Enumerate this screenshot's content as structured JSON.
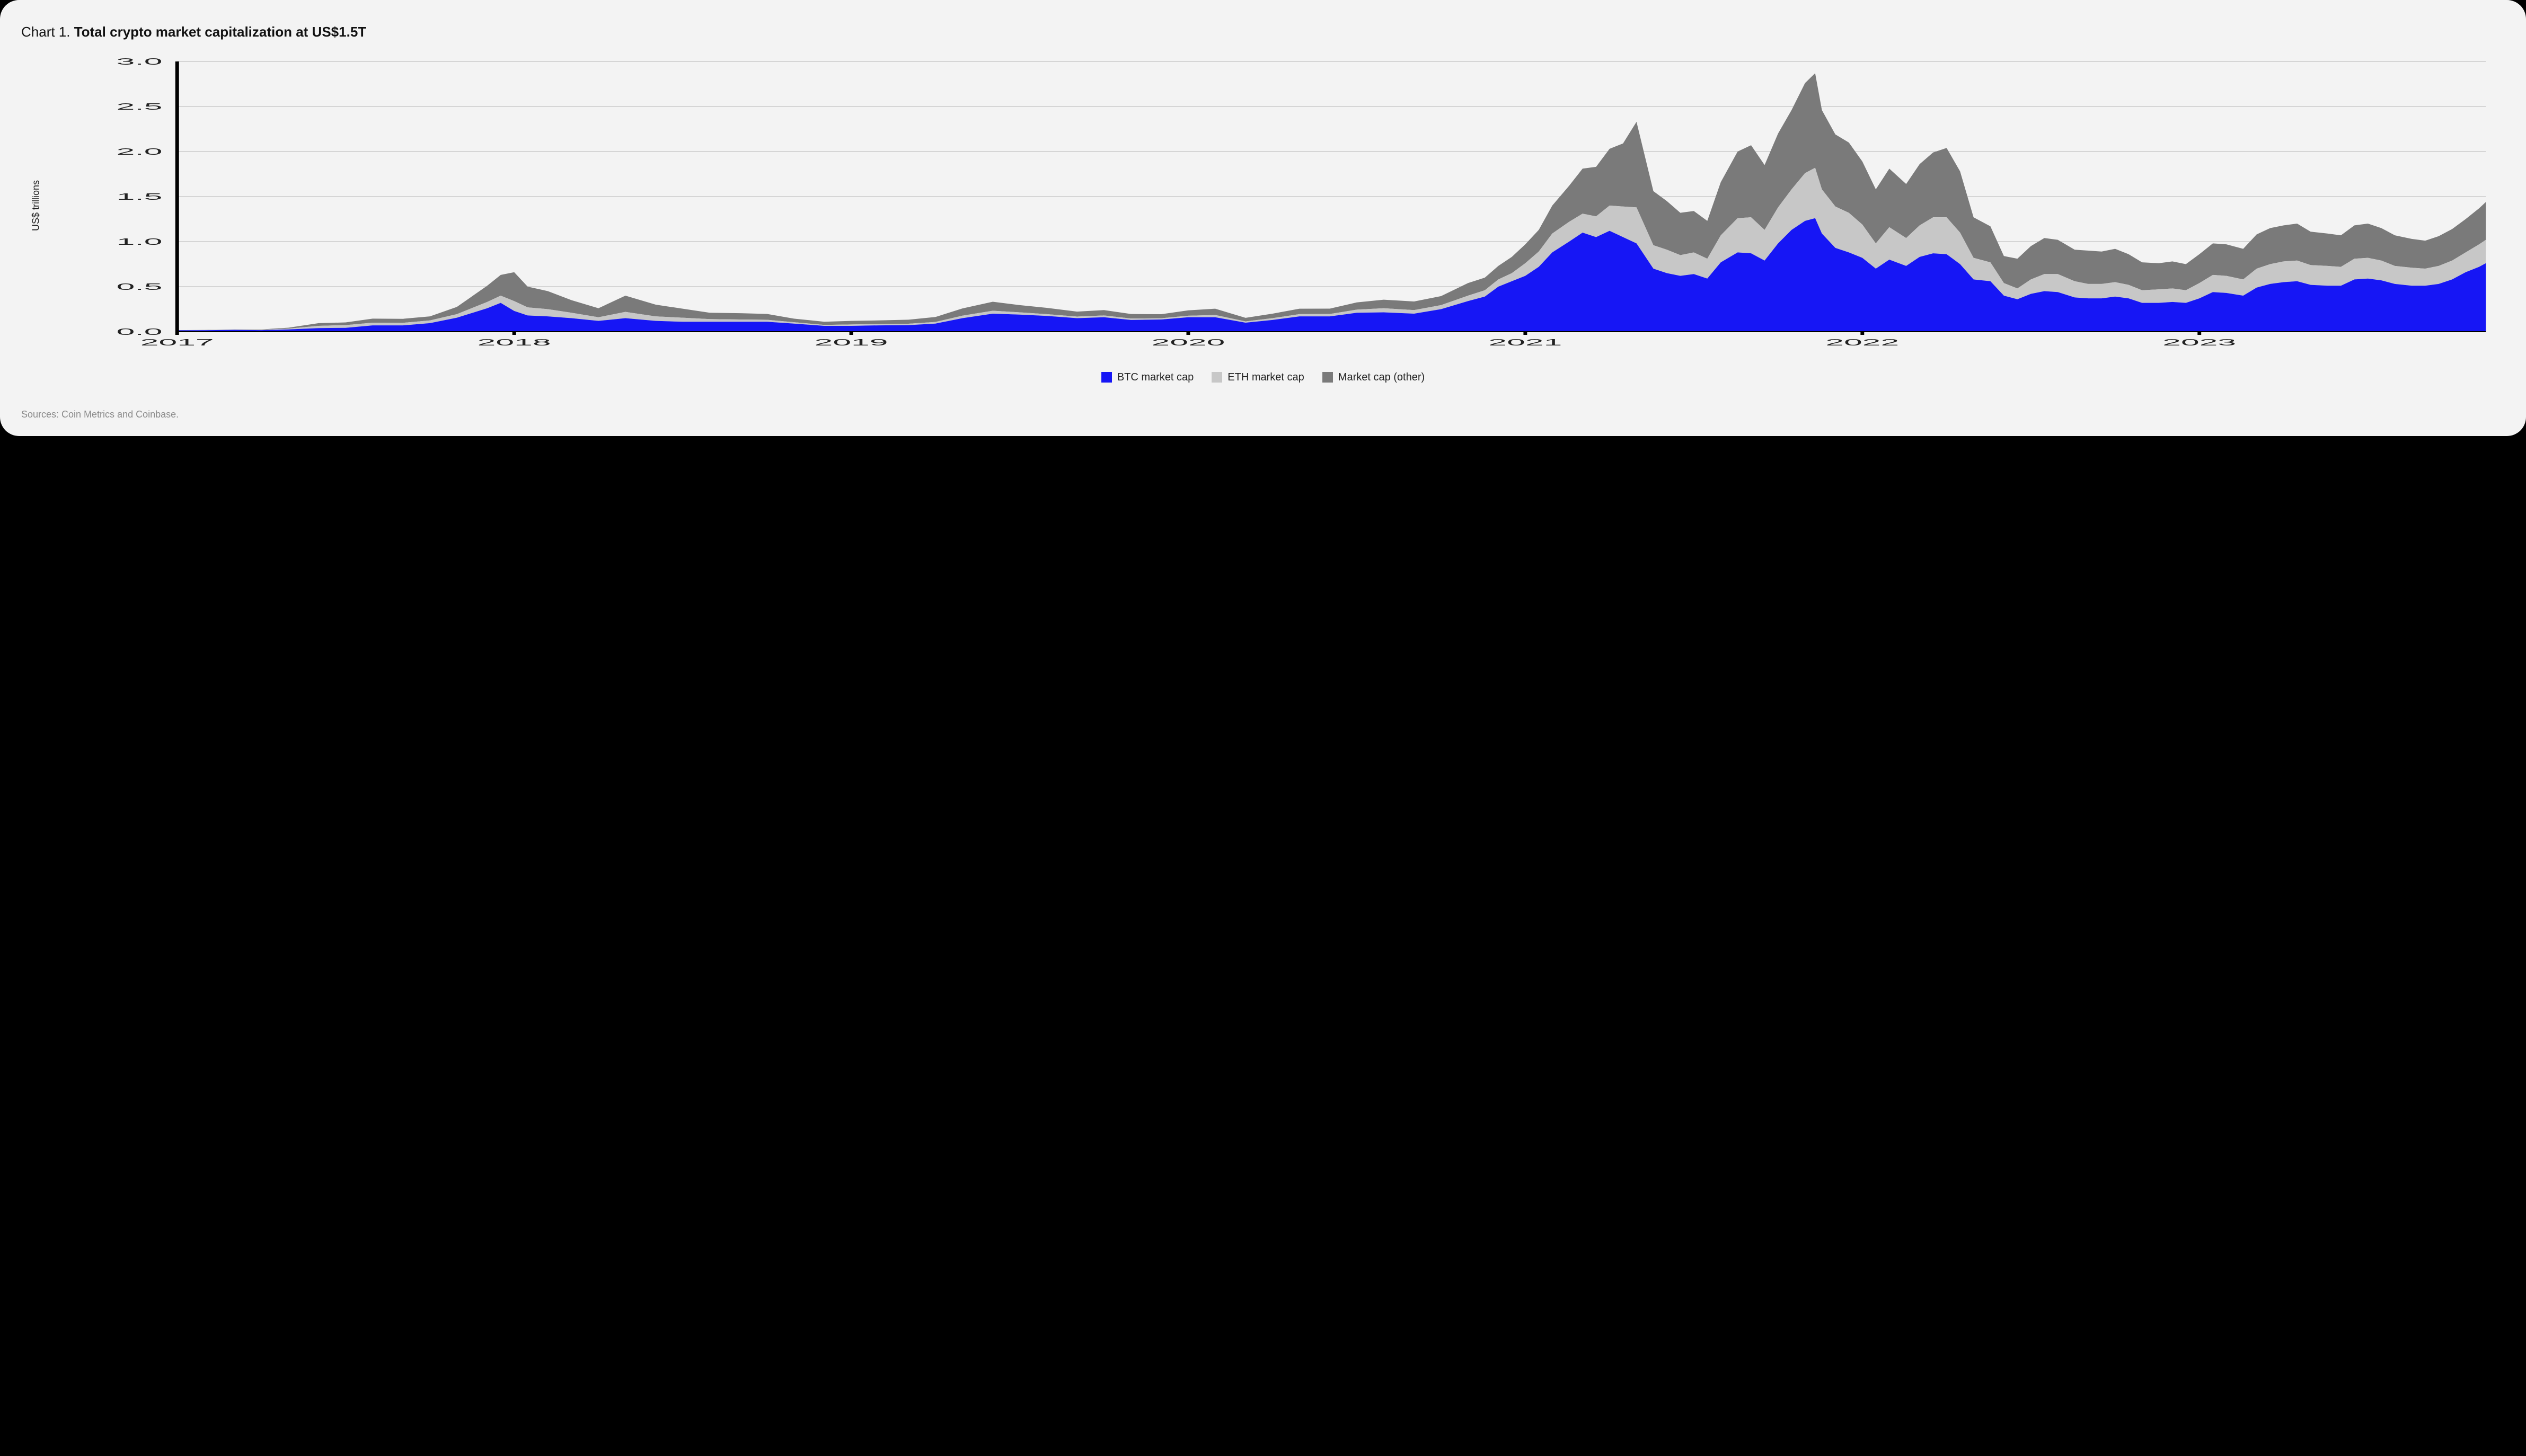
{
  "title_prefix": "Chart 1. ",
  "title_bold": "Total crypto market capitalization at US$1.5T",
  "y_axis_title": "US$ trillions",
  "sources_text": "Sources: Coin Metrics and Coinbase.",
  "chart": {
    "type": "area-stacked",
    "background_color": "#f3f3f3",
    "grid_color": "#b7b7b7",
    "axis_color": "#000000",
    "tick_font_size_px": 18,
    "tick_color": "#222222",
    "x_domain": [
      2017.0,
      2023.85
    ],
    "y_domain": [
      0.0,
      3.0
    ],
    "y_ticks": [
      0.0,
      0.5,
      1.0,
      1.5,
      2.0,
      2.5,
      3.0
    ],
    "y_tick_labels": [
      "0.0",
      "0.5",
      "1.0",
      "1.5",
      "2.0",
      "2.5",
      "3.0"
    ],
    "x_ticks": [
      2017,
      2018,
      2019,
      2020,
      2021,
      2022,
      2023
    ],
    "x_tick_labels": [
      "2017",
      "2018",
      "2019",
      "2020",
      "2021",
      "2022",
      "2023"
    ],
    "series": [
      {
        "key": "btc",
        "label": "BTC market cap",
        "color": "#1616f5"
      },
      {
        "key": "eth",
        "label": "ETH market cap",
        "color": "#c7c7c7"
      },
      {
        "key": "other",
        "label": "Market cap (other)",
        "color": "#7a7a7a"
      }
    ],
    "points": [
      {
        "x": 2017.0,
        "btc": 0.015,
        "eth": 0.0,
        "other": 0.002
      },
      {
        "x": 2017.08,
        "btc": 0.016,
        "eth": 0.001,
        "other": 0.002
      },
      {
        "x": 2017.17,
        "btc": 0.02,
        "eth": 0.002,
        "other": 0.003
      },
      {
        "x": 2017.25,
        "btc": 0.017,
        "eth": 0.004,
        "other": 0.004
      },
      {
        "x": 2017.33,
        "btc": 0.025,
        "eth": 0.009,
        "other": 0.01
      },
      {
        "x": 2017.42,
        "btc": 0.04,
        "eth": 0.025,
        "other": 0.03
      },
      {
        "x": 2017.5,
        "btc": 0.043,
        "eth": 0.03,
        "other": 0.03
      },
      {
        "x": 2017.58,
        "btc": 0.07,
        "eth": 0.03,
        "other": 0.045
      },
      {
        "x": 2017.67,
        "btc": 0.07,
        "eth": 0.028,
        "other": 0.045
      },
      {
        "x": 2017.75,
        "btc": 0.095,
        "eth": 0.03,
        "other": 0.045
      },
      {
        "x": 2017.83,
        "btc": 0.155,
        "eth": 0.04,
        "other": 0.08
      },
      {
        "x": 2017.92,
        "btc": 0.26,
        "eth": 0.07,
        "other": 0.18
      },
      {
        "x": 2017.96,
        "btc": 0.32,
        "eth": 0.08,
        "other": 0.23
      },
      {
        "x": 2018.0,
        "btc": 0.23,
        "eth": 0.11,
        "other": 0.32
      },
      {
        "x": 2018.04,
        "btc": 0.18,
        "eth": 0.09,
        "other": 0.23
      },
      {
        "x": 2018.1,
        "btc": 0.17,
        "eth": 0.08,
        "other": 0.2
      },
      {
        "x": 2018.17,
        "btc": 0.15,
        "eth": 0.06,
        "other": 0.14
      },
      {
        "x": 2018.25,
        "btc": 0.12,
        "eth": 0.04,
        "other": 0.1
      },
      {
        "x": 2018.33,
        "btc": 0.15,
        "eth": 0.07,
        "other": 0.18
      },
      {
        "x": 2018.42,
        "btc": 0.12,
        "eth": 0.05,
        "other": 0.13
      },
      {
        "x": 2018.5,
        "btc": 0.11,
        "eth": 0.045,
        "other": 0.1
      },
      {
        "x": 2018.58,
        "btc": 0.11,
        "eth": 0.03,
        "other": 0.07
      },
      {
        "x": 2018.67,
        "btc": 0.11,
        "eth": 0.025,
        "other": 0.07
      },
      {
        "x": 2018.75,
        "btc": 0.11,
        "eth": 0.022,
        "other": 0.065
      },
      {
        "x": 2018.83,
        "btc": 0.09,
        "eth": 0.015,
        "other": 0.04
      },
      {
        "x": 2018.92,
        "btc": 0.065,
        "eth": 0.01,
        "other": 0.035
      },
      {
        "x": 2019.0,
        "btc": 0.065,
        "eth": 0.015,
        "other": 0.04
      },
      {
        "x": 2019.08,
        "btc": 0.07,
        "eth": 0.015,
        "other": 0.04
      },
      {
        "x": 2019.17,
        "btc": 0.073,
        "eth": 0.015,
        "other": 0.045
      },
      {
        "x": 2019.25,
        "btc": 0.09,
        "eth": 0.018,
        "other": 0.055
      },
      {
        "x": 2019.33,
        "btc": 0.15,
        "eth": 0.028,
        "other": 0.08
      },
      {
        "x": 2019.42,
        "btc": 0.2,
        "eth": 0.032,
        "other": 0.1
      },
      {
        "x": 2019.5,
        "btc": 0.19,
        "eth": 0.025,
        "other": 0.08
      },
      {
        "x": 2019.58,
        "btc": 0.175,
        "eth": 0.02,
        "other": 0.07
      },
      {
        "x": 2019.67,
        "btc": 0.15,
        "eth": 0.018,
        "other": 0.055
      },
      {
        "x": 2019.75,
        "btc": 0.16,
        "eth": 0.02,
        "other": 0.06
      },
      {
        "x": 2019.83,
        "btc": 0.13,
        "eth": 0.016,
        "other": 0.05
      },
      {
        "x": 2019.92,
        "btc": 0.135,
        "eth": 0.014,
        "other": 0.045
      },
      {
        "x": 2020.0,
        "btc": 0.16,
        "eth": 0.017,
        "other": 0.06
      },
      {
        "x": 2020.08,
        "btc": 0.16,
        "eth": 0.025,
        "other": 0.07
      },
      {
        "x": 2020.17,
        "btc": 0.1,
        "eth": 0.014,
        "other": 0.04
      },
      {
        "x": 2020.25,
        "btc": 0.13,
        "eth": 0.02,
        "other": 0.05
      },
      {
        "x": 2020.33,
        "btc": 0.17,
        "eth": 0.025,
        "other": 0.06
      },
      {
        "x": 2020.42,
        "btc": 0.17,
        "eth": 0.026,
        "other": 0.06
      },
      {
        "x": 2020.5,
        "btc": 0.21,
        "eth": 0.035,
        "other": 0.08
      },
      {
        "x": 2020.58,
        "btc": 0.215,
        "eth": 0.045,
        "other": 0.095
      },
      {
        "x": 2020.67,
        "btc": 0.2,
        "eth": 0.04,
        "other": 0.095
      },
      {
        "x": 2020.75,
        "btc": 0.25,
        "eth": 0.045,
        "other": 0.1
      },
      {
        "x": 2020.83,
        "btc": 0.34,
        "eth": 0.06,
        "other": 0.14
      },
      {
        "x": 2020.88,
        "btc": 0.39,
        "eth": 0.07,
        "other": 0.14
      },
      {
        "x": 2020.92,
        "btc": 0.5,
        "eth": 0.08,
        "other": 0.15
      },
      {
        "x": 2020.96,
        "btc": 0.56,
        "eth": 0.09,
        "other": 0.18
      },
      {
        "x": 2021.0,
        "btc": 0.62,
        "eth": 0.14,
        "other": 0.21
      },
      {
        "x": 2021.04,
        "btc": 0.72,
        "eth": 0.17,
        "other": 0.24
      },
      {
        "x": 2021.08,
        "btc": 0.88,
        "eth": 0.21,
        "other": 0.31
      },
      {
        "x": 2021.13,
        "btc": 1.0,
        "eth": 0.22,
        "other": 0.4
      },
      {
        "x": 2021.17,
        "btc": 1.1,
        "eth": 0.21,
        "other": 0.5
      },
      {
        "x": 2021.21,
        "btc": 1.05,
        "eth": 0.23,
        "other": 0.55
      },
      {
        "x": 2021.25,
        "btc": 1.12,
        "eth": 0.28,
        "other": 0.63
      },
      {
        "x": 2021.29,
        "btc": 1.05,
        "eth": 0.34,
        "other": 0.7
      },
      {
        "x": 2021.33,
        "btc": 0.98,
        "eth": 0.4,
        "other": 0.95
      },
      {
        "x": 2021.38,
        "btc": 0.7,
        "eth": 0.26,
        "other": 0.6
      },
      {
        "x": 2021.42,
        "btc": 0.65,
        "eth": 0.26,
        "other": 0.54
      },
      {
        "x": 2021.46,
        "btc": 0.62,
        "eth": 0.23,
        "other": 0.47
      },
      {
        "x": 2021.5,
        "btc": 0.64,
        "eth": 0.24,
        "other": 0.46
      },
      {
        "x": 2021.54,
        "btc": 0.59,
        "eth": 0.22,
        "other": 0.42
      },
      {
        "x": 2021.58,
        "btc": 0.77,
        "eth": 0.3,
        "other": 0.59
      },
      {
        "x": 2021.63,
        "btc": 0.88,
        "eth": 0.38,
        "other": 0.74
      },
      {
        "x": 2021.67,
        "btc": 0.87,
        "eth": 0.4,
        "other": 0.8
      },
      {
        "x": 2021.71,
        "btc": 0.79,
        "eth": 0.34,
        "other": 0.72
      },
      {
        "x": 2021.75,
        "btc": 0.98,
        "eth": 0.4,
        "other": 0.82
      },
      {
        "x": 2021.79,
        "btc": 1.13,
        "eth": 0.45,
        "other": 0.88
      },
      {
        "x": 2021.83,
        "btc": 1.23,
        "eth": 0.53,
        "other": 1.0
      },
      {
        "x": 2021.86,
        "btc": 1.26,
        "eth": 0.56,
        "other": 1.05
      },
      {
        "x": 2021.88,
        "btc": 1.09,
        "eth": 0.49,
        "other": 0.88
      },
      {
        "x": 2021.92,
        "btc": 0.93,
        "eth": 0.46,
        "other": 0.8
      },
      {
        "x": 2021.96,
        "btc": 0.88,
        "eth": 0.44,
        "other": 0.78
      },
      {
        "x": 2022.0,
        "btc": 0.82,
        "eth": 0.37,
        "other": 0.7
      },
      {
        "x": 2022.04,
        "btc": 0.7,
        "eth": 0.28,
        "other": 0.6
      },
      {
        "x": 2022.08,
        "btc": 0.8,
        "eth": 0.36,
        "other": 0.65
      },
      {
        "x": 2022.13,
        "btc": 0.73,
        "eth": 0.31,
        "other": 0.6
      },
      {
        "x": 2022.17,
        "btc": 0.83,
        "eth": 0.35,
        "other": 0.68
      },
      {
        "x": 2022.21,
        "btc": 0.87,
        "eth": 0.4,
        "other": 0.72
      },
      {
        "x": 2022.25,
        "btc": 0.86,
        "eth": 0.41,
        "other": 0.77
      },
      {
        "x": 2022.29,
        "btc": 0.75,
        "eth": 0.35,
        "other": 0.68
      },
      {
        "x": 2022.33,
        "btc": 0.58,
        "eth": 0.24,
        "other": 0.45
      },
      {
        "x": 2022.38,
        "btc": 0.56,
        "eth": 0.21,
        "other": 0.4
      },
      {
        "x": 2022.42,
        "btc": 0.4,
        "eth": 0.14,
        "other": 0.3
      },
      {
        "x": 2022.46,
        "btc": 0.36,
        "eth": 0.12,
        "other": 0.33
      },
      {
        "x": 2022.5,
        "btc": 0.42,
        "eth": 0.16,
        "other": 0.37
      },
      {
        "x": 2022.54,
        "btc": 0.45,
        "eth": 0.19,
        "other": 0.4
      },
      {
        "x": 2022.58,
        "btc": 0.44,
        "eth": 0.2,
        "other": 0.38
      },
      {
        "x": 2022.63,
        "btc": 0.38,
        "eth": 0.18,
        "other": 0.35
      },
      {
        "x": 2022.67,
        "btc": 0.37,
        "eth": 0.16,
        "other": 0.37
      },
      {
        "x": 2022.71,
        "btc": 0.37,
        "eth": 0.16,
        "other": 0.36
      },
      {
        "x": 2022.75,
        "btc": 0.39,
        "eth": 0.16,
        "other": 0.37
      },
      {
        "x": 2022.79,
        "btc": 0.37,
        "eth": 0.15,
        "other": 0.34
      },
      {
        "x": 2022.83,
        "btc": 0.32,
        "eth": 0.14,
        "other": 0.31
      },
      {
        "x": 2022.88,
        "btc": 0.32,
        "eth": 0.15,
        "other": 0.29
      },
      {
        "x": 2022.92,
        "btc": 0.33,
        "eth": 0.15,
        "other": 0.3
      },
      {
        "x": 2022.96,
        "btc": 0.32,
        "eth": 0.14,
        "other": 0.29
      },
      {
        "x": 2023.0,
        "btc": 0.37,
        "eth": 0.17,
        "other": 0.32
      },
      {
        "x": 2023.04,
        "btc": 0.44,
        "eth": 0.19,
        "other": 0.35
      },
      {
        "x": 2023.08,
        "btc": 0.43,
        "eth": 0.19,
        "other": 0.35
      },
      {
        "x": 2023.13,
        "btc": 0.4,
        "eth": 0.18,
        "other": 0.34
      },
      {
        "x": 2023.17,
        "btc": 0.49,
        "eth": 0.21,
        "other": 0.38
      },
      {
        "x": 2023.21,
        "btc": 0.53,
        "eth": 0.22,
        "other": 0.4
      },
      {
        "x": 2023.25,
        "btc": 0.55,
        "eth": 0.23,
        "other": 0.4
      },
      {
        "x": 2023.29,
        "btc": 0.56,
        "eth": 0.23,
        "other": 0.41
      },
      {
        "x": 2023.33,
        "btc": 0.52,
        "eth": 0.22,
        "other": 0.37
      },
      {
        "x": 2023.38,
        "btc": 0.51,
        "eth": 0.22,
        "other": 0.36
      },
      {
        "x": 2023.42,
        "btc": 0.51,
        "eth": 0.21,
        "other": 0.35
      },
      {
        "x": 2023.46,
        "btc": 0.58,
        "eth": 0.23,
        "other": 0.37
      },
      {
        "x": 2023.5,
        "btc": 0.59,
        "eth": 0.23,
        "other": 0.38
      },
      {
        "x": 2023.54,
        "btc": 0.57,
        "eth": 0.22,
        "other": 0.36
      },
      {
        "x": 2023.58,
        "btc": 0.53,
        "eth": 0.2,
        "other": 0.34
      },
      {
        "x": 2023.63,
        "btc": 0.51,
        "eth": 0.2,
        "other": 0.32
      },
      {
        "x": 2023.67,
        "btc": 0.51,
        "eth": 0.19,
        "other": 0.31
      },
      {
        "x": 2023.71,
        "btc": 0.53,
        "eth": 0.2,
        "other": 0.33
      },
      {
        "x": 2023.75,
        "btc": 0.58,
        "eth": 0.21,
        "other": 0.35
      },
      {
        "x": 2023.79,
        "btc": 0.66,
        "eth": 0.22,
        "other": 0.37
      },
      {
        "x": 2023.83,
        "btc": 0.72,
        "eth": 0.25,
        "other": 0.4
      },
      {
        "x": 2023.85,
        "btc": 0.76,
        "eth": 0.26,
        "other": 0.42
      }
    ]
  }
}
